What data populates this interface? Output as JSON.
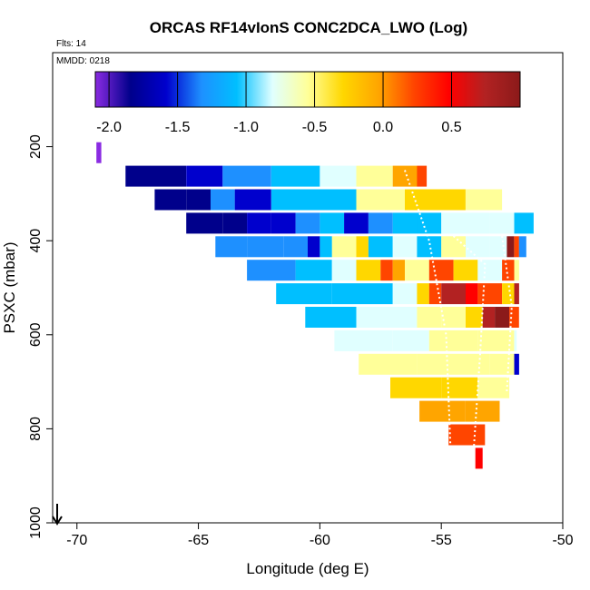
{
  "chart_data": {
    "type": "heatmap",
    "title": "ORCAS RF14vIonS CONC2DCA_LWO (Log)",
    "subtitle_flights": "Flts: 14",
    "subtitle_date": "MMDD: 0218",
    "xlabel": "Longitude (deg E)",
    "ylabel": "PSXC (mbar)",
    "xlim": [
      -71,
      -50
    ],
    "ylim": [
      1000,
      0
    ],
    "x_ticks": [
      -70,
      -65,
      -60,
      -55,
      -50
    ],
    "x_tick_labels": [
      "-70",
      "-65",
      "-60",
      "-55",
      "-50"
    ],
    "y_ticks": [
      200,
      400,
      600,
      800,
      1000
    ],
    "y_tick_labels": [
      "200",
      "400",
      "600",
      "800",
      "1000"
    ],
    "colorbar": {
      "range": [
        -2.1,
        1.0
      ],
      "ticks": [
        -2.0,
        -1.5,
        -1.0,
        -0.5,
        0.0,
        0.5
      ],
      "tick_labels": [
        "-2.0",
        "-1.5",
        "-1.0",
        "-0.5",
        "0.0",
        "0.5"
      ],
      "colors": [
        "#8a2be2",
        "#00008b",
        "#0000cd",
        "#1e90ff",
        "#00bfff",
        "#e0ffff",
        "#ffff99",
        "#ffd700",
        "#ffa500",
        "#ff4500",
        "#ff0000",
        "#b22222",
        "#8b1a1a"
      ]
    },
    "rows": [
      {
        "p": 235,
        "cells": [
          [
            -69.2,
            -69.0,
            -2.1
          ]
        ]
      },
      {
        "p": 285,
        "cells": [
          [
            -68.0,
            -67.0,
            -1.8
          ],
          [
            -67.0,
            -65.5,
            -1.65
          ],
          [
            -65.5,
            -64.0,
            -1.5
          ],
          [
            -64.0,
            -62.0,
            -1.2
          ],
          [
            -62.0,
            -60.0,
            -1.0
          ],
          [
            -60.0,
            -58.5,
            -0.8
          ],
          [
            -58.5,
            -57.0,
            -0.5
          ],
          [
            -57.0,
            -56.0,
            -0.15
          ],
          [
            -56.0,
            -55.6,
            0.05
          ]
        ]
      },
      {
        "p": 335,
        "cells": [
          [
            -66.8,
            -65.5,
            -1.8
          ],
          [
            -65.5,
            -64.5,
            -1.7
          ],
          [
            -64.5,
            -63.5,
            -1.3
          ],
          [
            -63.5,
            -62.0,
            -1.6
          ],
          [
            -62.0,
            -60.5,
            -1.1
          ],
          [
            -60.5,
            -58.5,
            -0.95
          ],
          [
            -58.5,
            -56.5,
            -0.6
          ],
          [
            -56.5,
            -54.0,
            -0.4
          ],
          [
            -54.0,
            -52.5,
            -0.45
          ]
        ]
      },
      {
        "p": 385,
        "cells": [
          [
            -65.5,
            -64.0,
            -1.75
          ],
          [
            -64.0,
            -63.0,
            -1.85
          ],
          [
            -63.0,
            -62.0,
            -1.4
          ],
          [
            -62.0,
            -61.0,
            -1.5
          ],
          [
            -61.0,
            -60.0,
            -1.2
          ],
          [
            -60.0,
            -59.0,
            -1.1
          ],
          [
            -59.0,
            -58.0,
            -1.6
          ],
          [
            -58.0,
            -57.0,
            -1.3
          ],
          [
            -57.0,
            -56.0,
            -1.0
          ],
          [
            -56.0,
            -55.0,
            -1.1
          ],
          [
            -55.0,
            -54.0,
            -0.8
          ],
          [
            -54.0,
            -53.0,
            -0.7
          ],
          [
            -53.0,
            -52.0,
            -0.9
          ],
          [
            -52.0,
            -51.2,
            -1.0
          ]
        ]
      },
      {
        "p": 435,
        "cells": [
          [
            -64.3,
            -63.0,
            -1.35
          ],
          [
            -63.0,
            -61.5,
            -1.2
          ],
          [
            -61.5,
            -60.5,
            -1.3
          ],
          [
            -60.5,
            -60.0,
            -1.55
          ],
          [
            -60.0,
            -59.5,
            -1.0
          ],
          [
            -59.5,
            -58.5,
            -0.5
          ],
          [
            -58.5,
            -58.0,
            -0.2
          ],
          [
            -58.0,
            -57.0,
            -1.1
          ],
          [
            -57.0,
            -56.0,
            -0.8
          ],
          [
            -56.0,
            -55.0,
            -1.0
          ],
          [
            -55.0,
            -54.0,
            -0.6
          ],
          [
            -54.0,
            -53.0,
            -0.9
          ],
          [
            -53.0,
            -52.3,
            -0.7
          ],
          [
            -52.3,
            -52.0,
            0.9
          ],
          [
            -52.0,
            -51.8,
            0.1
          ],
          [
            -51.8,
            -51.5,
            -1.2
          ]
        ]
      },
      {
        "p": 485,
        "cells": [
          [
            -63.0,
            -61.0,
            -1.2
          ],
          [
            -61.0,
            -59.5,
            -1.1
          ],
          [
            -59.5,
            -58.5,
            -0.9
          ],
          [
            -58.5,
            -57.5,
            -0.3
          ],
          [
            -57.5,
            -57.0,
            0.1
          ],
          [
            -57.0,
            -56.5,
            -0.1
          ],
          [
            -56.5,
            -55.5,
            -0.6
          ],
          [
            -55.5,
            -54.5,
            0.05
          ],
          [
            -54.5,
            -53.5,
            -0.2
          ],
          [
            -53.5,
            -52.5,
            -0.8
          ],
          [
            -52.5,
            -52.0,
            0.1
          ],
          [
            -52.0,
            -51.8,
            -0.5
          ]
        ]
      },
      {
        "p": 535,
        "cells": [
          [
            -61.8,
            -59.5,
            -1.1
          ],
          [
            -59.5,
            -57.0,
            -1.05
          ],
          [
            -57.0,
            -56.0,
            -0.9
          ],
          [
            -56.0,
            -55.5,
            -0.4
          ],
          [
            -55.5,
            -55.0,
            0.2
          ],
          [
            -55.0,
            -54.0,
            0.6
          ],
          [
            -54.0,
            -53.5,
            0.3
          ],
          [
            -53.5,
            -52.5,
            0.2
          ],
          [
            -52.5,
            -52.0,
            -0.3
          ],
          [
            -52.0,
            -51.8,
            0.7
          ]
        ]
      },
      {
        "p": 585,
        "cells": [
          [
            -60.6,
            -58.5,
            -0.95
          ],
          [
            -58.5,
            -56.0,
            -0.9
          ],
          [
            -56.0,
            -55.0,
            -0.6
          ],
          [
            -55.0,
            -54.0,
            -0.45
          ],
          [
            -54.0,
            -53.3,
            -0.2
          ],
          [
            -53.3,
            -52.8,
            0.7
          ],
          [
            -52.8,
            -52.2,
            0.85
          ],
          [
            -52.2,
            -51.8,
            0.05
          ]
        ]
      },
      {
        "p": 635,
        "cells": [
          [
            -59.4,
            -57.0,
            -0.75
          ],
          [
            -57.0,
            -55.5,
            -0.7
          ],
          [
            -55.5,
            -53.5,
            -0.65
          ],
          [
            -53.5,
            -52.0,
            -0.6
          ],
          [
            -52.0,
            -51.9,
            -0.8
          ]
        ]
      },
      {
        "p": 685,
        "cells": [
          [
            -58.4,
            -56.0,
            -0.45
          ],
          [
            -56.0,
            -53.0,
            -0.45
          ],
          [
            -53.0,
            -52.0,
            -0.5
          ],
          [
            -52.0,
            -51.8,
            -1.6
          ]
        ]
      },
      {
        "p": 735,
        "cells": [
          [
            -57.1,
            -55.0,
            -0.35
          ],
          [
            -55.0,
            -53.5,
            -0.4
          ],
          [
            -53.5,
            -52.2,
            -0.45
          ]
        ]
      },
      {
        "p": 785,
        "cells": [
          [
            -55.9,
            -54.0,
            -0.15
          ],
          [
            -54.0,
            -52.6,
            -0.1
          ]
        ]
      },
      {
        "p": 835,
        "cells": [
          [
            -54.7,
            -53.2,
            0.05
          ]
        ]
      },
      {
        "p": 885,
        "cells": [
          [
            -53.6,
            -53.3,
            0.35
          ]
        ]
      }
    ],
    "flight_track_note": "dotted white aircraft track lines overlaid"
  }
}
